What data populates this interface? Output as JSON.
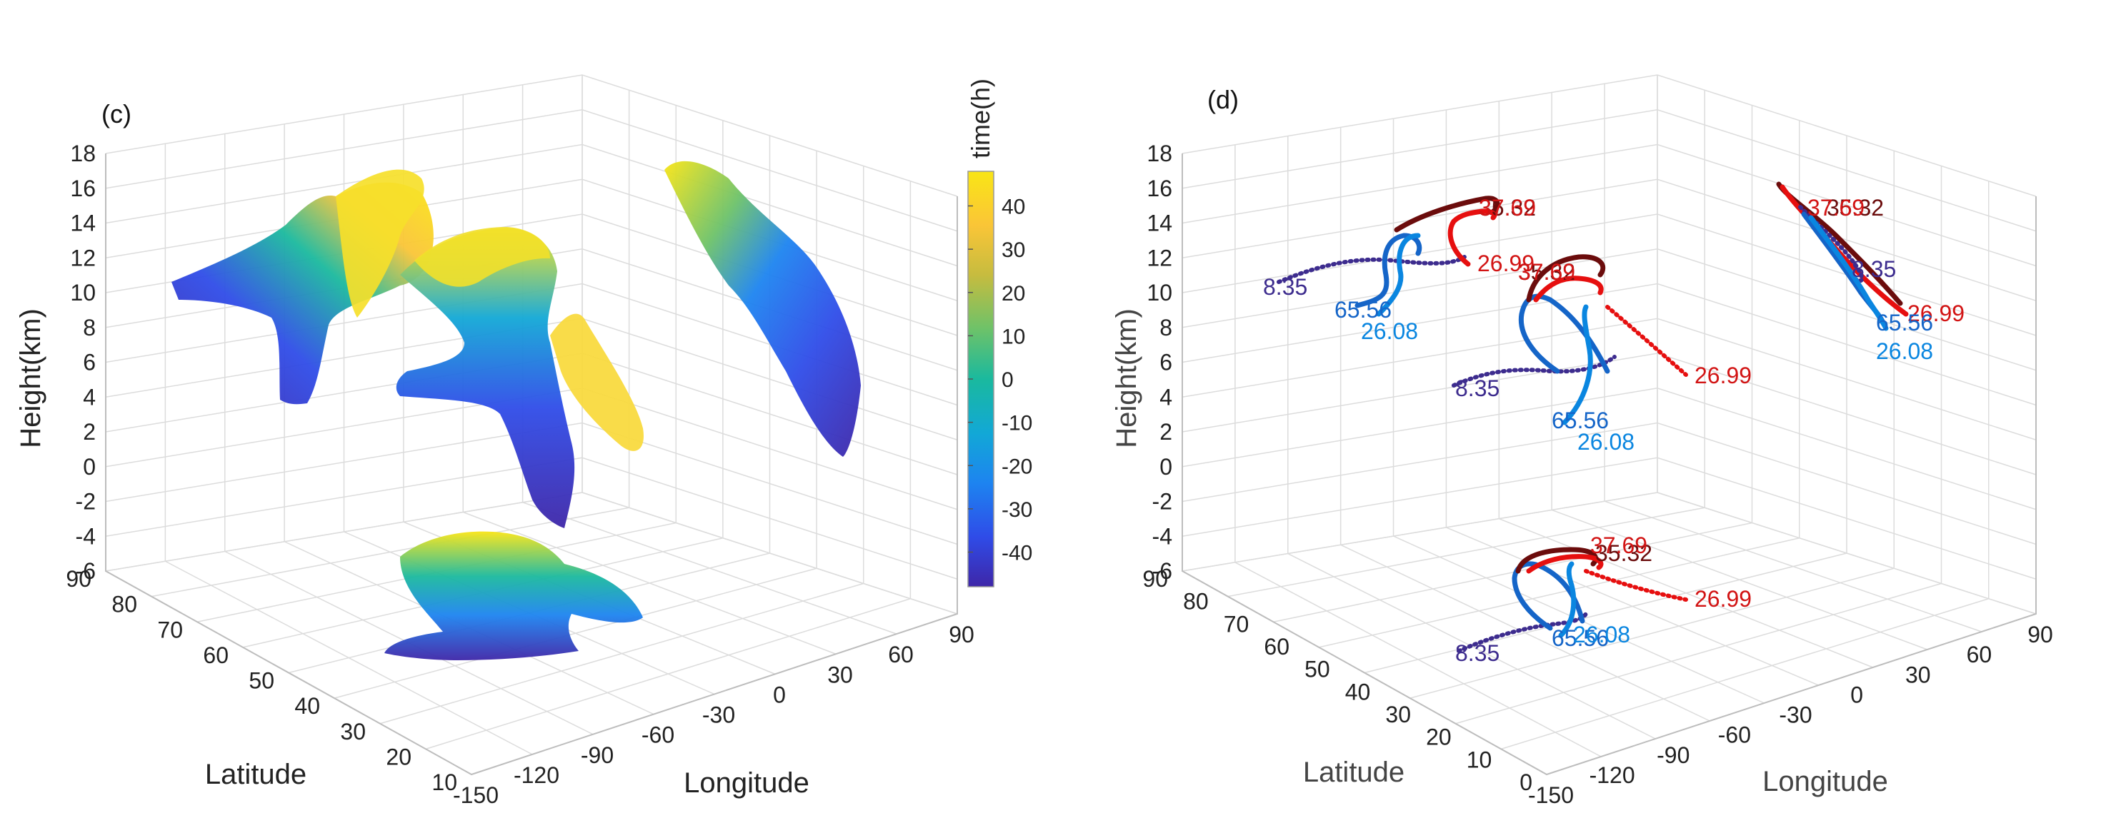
{
  "colors": {
    "grid": "#dcdcdc",
    "axis": "#bdbdbd",
    "tick_text": "#222222",
    "colormap": [
      "#3e26a8",
      "#2f4ce8",
      "#1d84f0",
      "#12a8d6",
      "#1ab99e",
      "#6dc269",
      "#c6bc3f",
      "#fac537",
      "#f9e516"
    ],
    "traj_dark_red": "#6b0c0c",
    "traj_red": "#e60f0f",
    "traj_label_red": "#d21414",
    "traj_purple": "#3d2c8e",
    "traj_blue": "#1565c8",
    "traj_light_blue": "#0a86e0"
  },
  "chart_data": [
    {
      "panel": "(c)",
      "type": "scatter",
      "title": "",
      "xlabel": "Longitude",
      "ylabel": "Latitude",
      "zlabel": "Height(km)",
      "xlim": [
        -150,
        90
      ],
      "ylim": [
        10,
        90
      ],
      "zlim": [
        -6,
        18
      ],
      "xticks": [
        "-150",
        "-120",
        "-90",
        "-60",
        "-30",
        "0",
        "30",
        "60",
        "90"
      ],
      "yticks": [
        "10",
        "20",
        "30",
        "40",
        "50",
        "60",
        "70",
        "80",
        "90"
      ],
      "zticks": [
        "-6",
        "-4",
        "-2",
        "0",
        "2",
        "4",
        "6",
        "8",
        "10",
        "12",
        "14",
        "16",
        "18"
      ],
      "colorbar": {
        "label": "time(h)",
        "range": [
          -48,
          48
        ],
        "ticks": [
          "40",
          "30",
          "20",
          "10",
          "0",
          "-10",
          "-20",
          "-30",
          "-40"
        ]
      }
    },
    {
      "panel": "(d)",
      "type": "line",
      "title": "",
      "xlabel": "Longitude",
      "ylabel": "Latitude",
      "zlabel": "Height(km)",
      "xlim": [
        -150,
        90
      ],
      "ylim": [
        0,
        90
      ],
      "zlim": [
        -6,
        18
      ],
      "xticks": [
        "-150",
        "-120",
        "-90",
        "-60",
        "-30",
        "0",
        "30",
        "60",
        "90"
      ],
      "yticks": [
        "0",
        "10",
        "20",
        "30",
        "40",
        "50",
        "60",
        "70",
        "80",
        "90"
      ],
      "zticks": [
        "-6",
        "-4",
        "-2",
        "0",
        "2",
        "4",
        "6",
        "8",
        "10",
        "12",
        "14",
        "16",
        "18"
      ],
      "series": [
        {
          "name": "8.35",
          "color": "#3d2c8e"
        },
        {
          "name": "65.56",
          "color": "#1565c8"
        },
        {
          "name": "26.08",
          "color": "#0a86e0"
        },
        {
          "name": "26.99",
          "color": "#e60f0f"
        },
        {
          "name": "37.69",
          "color": "#e60f0f"
        },
        {
          "name": "35.32",
          "color": "#6b0c0c"
        }
      ],
      "annotations": [
        {
          "view": "left",
          "texts": [
            "35.32",
            "37.69",
            "26.99",
            "8.35",
            "65.56",
            "26.08"
          ]
        },
        {
          "view": "center",
          "texts": [
            "35.32",
            "37.69",
            "26.99",
            "8.35",
            "65.56",
            "26.08"
          ]
        },
        {
          "view": "right",
          "texts": [
            "35.32",
            "37.69",
            "8.35",
            "26.99",
            "65.56",
            "26.08"
          ]
        },
        {
          "view": "bottom",
          "texts": [
            "35.32",
            "37.69",
            "26.99",
            "8.35",
            "65.56",
            "26.08"
          ]
        }
      ]
    }
  ]
}
